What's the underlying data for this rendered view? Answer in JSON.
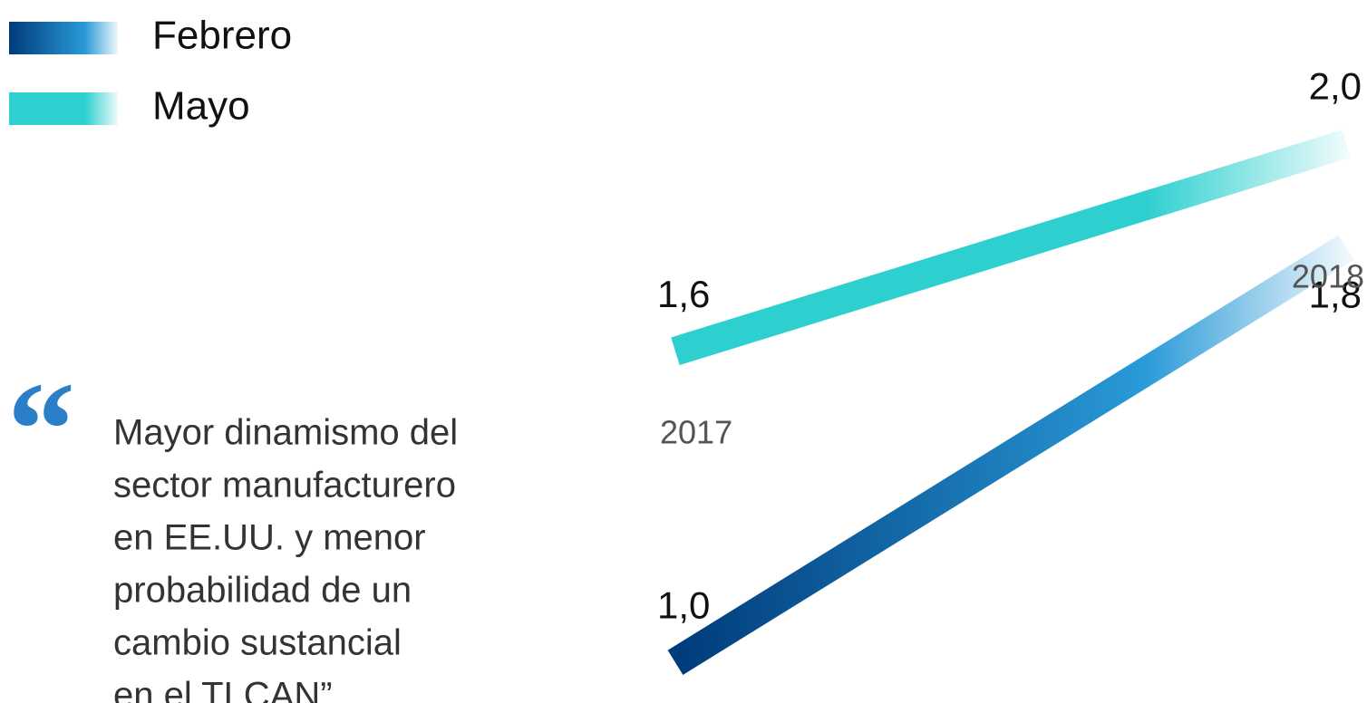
{
  "chart_data": {
    "type": "slope",
    "categories": [
      "2017",
      "2018"
    ],
    "series": [
      {
        "name": "Febrero",
        "color": "#2a9ad8",
        "gradient": [
          "#003b7a",
          "#2a9ad8"
        ],
        "values": [
          1.0,
          1.8
        ],
        "value_labels": [
          "1,0",
          "1,8"
        ]
      },
      {
        "name": "Mayo",
        "color": "#2ecfcf",
        "gradient": [
          "#2ecfcf",
          "#2ecfcf"
        ],
        "values": [
          1.6,
          2.0
        ],
        "value_labels": [
          "1,6",
          "2,0"
        ]
      }
    ],
    "ylim": [
      0.95,
      2.05
    ],
    "annotation": [
      "Mayor dinamismo del",
      "sector manufacturero",
      "en EE.UU. y menor",
      "probabilidad de un",
      "cambio sustancial",
      "en el TLCAN”"
    ]
  }
}
